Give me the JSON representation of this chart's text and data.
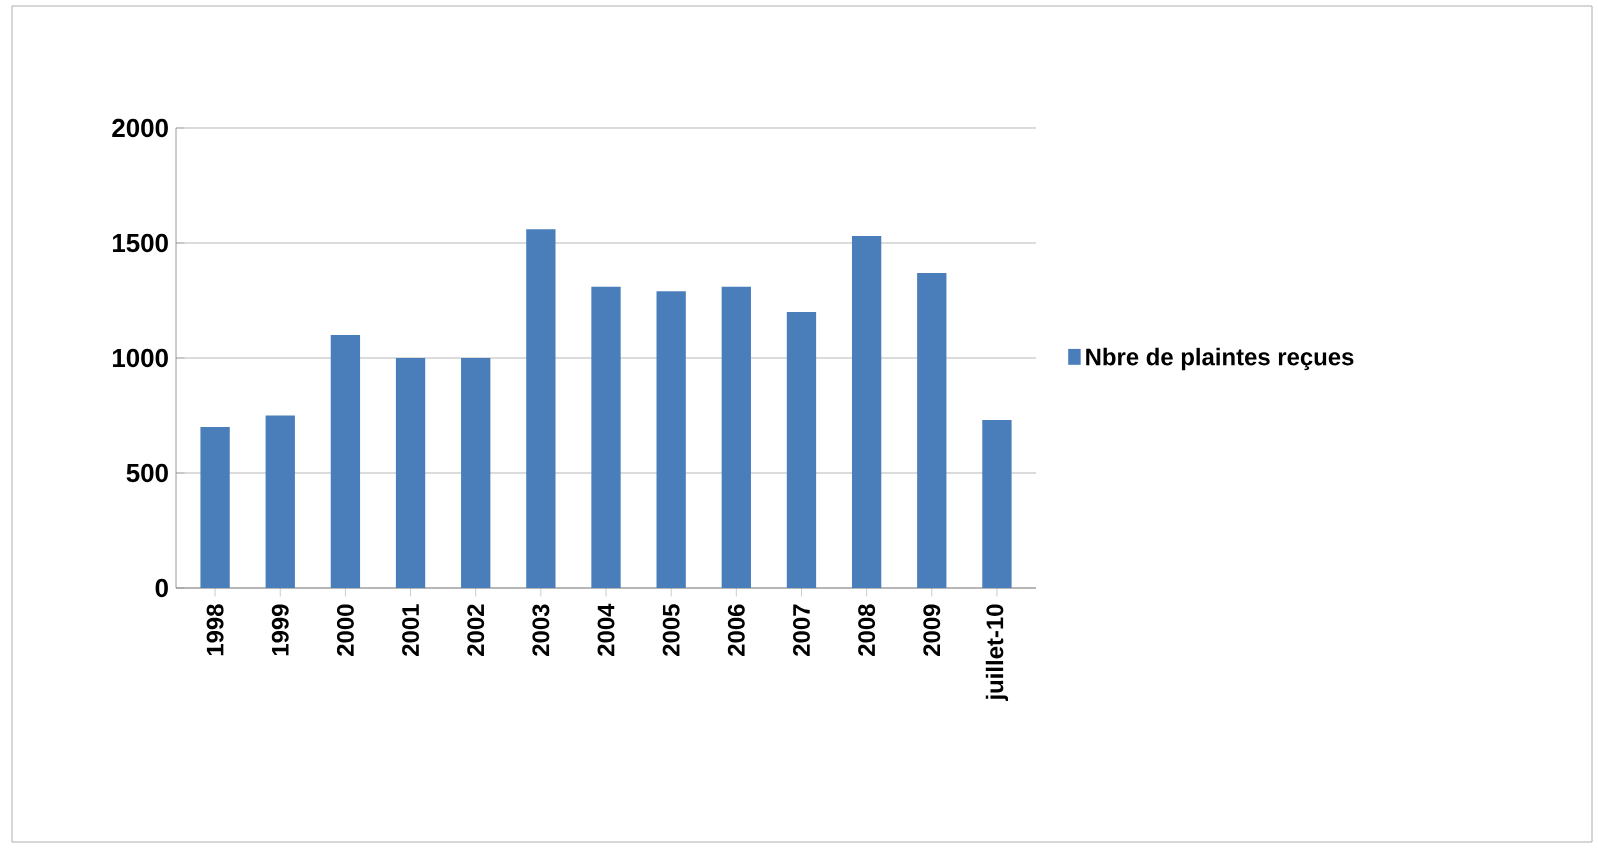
{
  "chart_data": {
    "type": "bar",
    "categories": [
      "1998",
      "1999",
      "2000",
      "2001",
      "2002",
      "2003",
      "2004",
      "2005",
      "2006",
      "2007",
      "2008",
      "2009",
      "juillet-10"
    ],
    "series": [
      {
        "name": "Nbre de plaintes reçues",
        "color": "#4a7ebb",
        "values": [
          700,
          750,
          1100,
          1000,
          1000,
          1560,
          1310,
          1290,
          1310,
          1200,
          1530,
          1370,
          730
        ]
      }
    ],
    "ylim": [
      0,
      2000
    ],
    "yticks": [
      0,
      500,
      1000,
      1500,
      2000
    ],
    "grid": "y",
    "legend": "right"
  }
}
